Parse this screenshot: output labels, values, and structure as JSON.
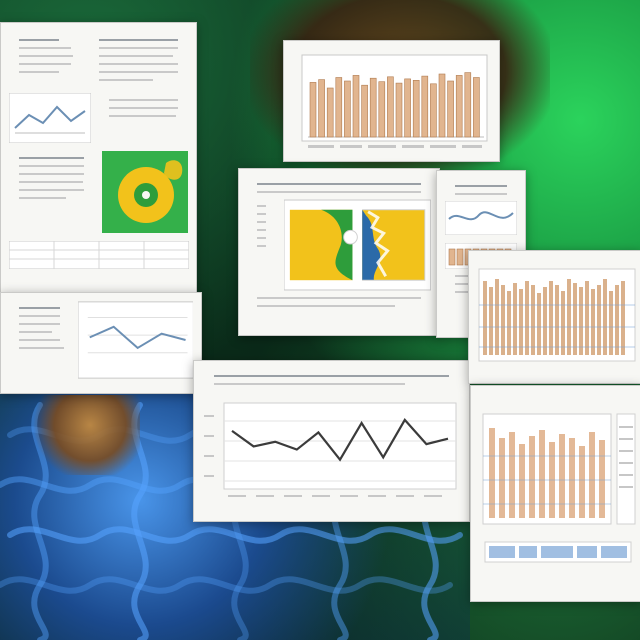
{
  "scene": {
    "colors": {
      "paper": "#f7f7f4",
      "ink": "#4a4a4a",
      "bar": "#e1b58f",
      "bar_stroke": "#b07b4f",
      "map_yellow": "#f2c21b",
      "map_green": "#2e9d3b",
      "line": "#3b3b3b",
      "grid": "#c6c6c6",
      "blue_mesh": "#56a3ff"
    },
    "icons": [
      "document-icon",
      "bar-chart-icon",
      "line-chart-icon",
      "map-icon",
      "table-icon"
    ],
    "bar_chart_preview": {
      "values": [
        0.78,
        0.82,
        0.7,
        0.85,
        0.8,
        0.88,
        0.74,
        0.84,
        0.79,
        0.86,
        0.77,
        0.83,
        0.81,
        0.87,
        0.76,
        0.9,
        0.8,
        0.88,
        0.92,
        0.85
      ]
    },
    "line_chart_preview": {
      "values": [
        0.72,
        0.52,
        0.58,
        0.48,
        0.7,
        0.35,
        0.82,
        0.38,
        0.86,
        0.55,
        0.62
      ]
    },
    "small_line_chart_preview": {
      "values": [
        0.55,
        0.75,
        0.35,
        0.62,
        0.5
      ]
    }
  }
}
